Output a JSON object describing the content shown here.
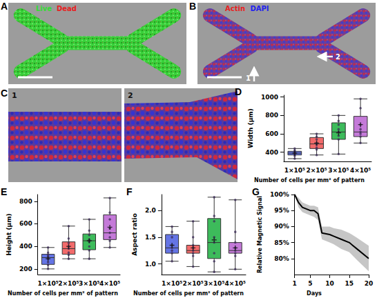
{
  "images": [
    {
      "letter": "A",
      "labels": [
        {
          "text": "Live",
          "color": "#33dd33"
        },
        {
          "text": "Dead",
          "color": "#e82020"
        }
      ]
    },
    {
      "letter": "B",
      "labels": [
        {
          "text": "Actin",
          "color": "#e82020"
        },
        {
          "text": "DAPI",
          "color": "#2222ee"
        }
      ],
      "arrows": [
        "1",
        "2"
      ]
    },
    {
      "letter": "C",
      "insets": [
        "1",
        "2"
      ]
    }
  ],
  "chart_data": [
    {
      "letter": "D",
      "type": "boxplot",
      "y_label": "Width (µm)",
      "x_label": "Number of cells per mm² of pattern",
      "categories": [
        "1×10⁵",
        "2×10⁵",
        "3×10⁵",
        "4×10⁵"
      ],
      "colors": [
        "#6474e5",
        "#f26b6b",
        "#3dbb5b",
        "#c47ad8"
      ],
      "boxes": [
        {
          "min": 330,
          "q1": 370,
          "median": 390,
          "q3": 410,
          "max": 440,
          "mean": 390,
          "points": [
            330,
            360,
            375,
            385,
            395,
            405,
            420,
            440
          ]
        },
        {
          "min": 370,
          "q1": 440,
          "median": 490,
          "q3": 560,
          "max": 600,
          "mean": 500,
          "points": [
            370,
            430,
            450,
            480,
            500,
            540,
            570,
            600
          ]
        },
        {
          "min": 380,
          "q1": 540,
          "median": 620,
          "q3": 720,
          "max": 800,
          "mean": 610,
          "points": [
            380,
            540,
            580,
            620,
            650,
            700,
            740,
            800
          ]
        },
        {
          "min": 500,
          "q1": 570,
          "median": 620,
          "q3": 790,
          "max": 980,
          "mean": 700,
          "points": [
            500,
            570,
            600,
            620,
            650,
            700,
            880,
            980
          ]
        }
      ],
      "ylim": [
        300,
        1020
      ],
      "yticks": [
        400,
        600,
        800,
        1000
      ],
      "grid": false
    },
    {
      "letter": "E",
      "type": "boxplot",
      "y_label": "Height (µm)",
      "x_label": "Number of cells per mm² of pattern",
      "categories": [
        "1×10⁵",
        "2×10⁵",
        "3×10⁵",
        "4×10⁵"
      ],
      "colors": [
        "#6474e5",
        "#f26b6b",
        "#3dbb5b",
        "#c47ad8"
      ],
      "boxes": [
        {
          "min": 200,
          "q1": 240,
          "median": 300,
          "q3": 330,
          "max": 390,
          "mean": 290,
          "points": [
            200,
            235,
            260,
            290,
            310,
            325,
            345,
            390
          ]
        },
        {
          "min": 290,
          "q1": 330,
          "median": 380,
          "q3": 440,
          "max": 580,
          "mean": 400,
          "points": [
            290,
            325,
            345,
            380,
            400,
            430,
            470,
            580
          ]
        },
        {
          "min": 290,
          "q1": 370,
          "median": 450,
          "q3": 510,
          "max": 640,
          "mean": 450,
          "points": [
            290,
            365,
            400,
            440,
            460,
            500,
            540,
            640
          ]
        },
        {
          "min": 390,
          "q1": 460,
          "median": 520,
          "q3": 680,
          "max": 830,
          "mean": 570,
          "points": [
            390,
            450,
            480,
            520,
            560,
            640,
            700,
            830
          ]
        }
      ],
      "ylim": [
        150,
        860
      ],
      "yticks": [
        200,
        400,
        600,
        800
      ],
      "grid": false
    },
    {
      "letter": "F",
      "type": "boxplot",
      "y_label": "Aspect ratio",
      "x_label": "Number of cells per mm² of pattern",
      "categories": [
        "1×10⁵",
        "2×10⁵",
        "3×10⁵",
        "4×10⁵"
      ],
      "colors": [
        "#6474e5",
        "#f26b6b",
        "#3dbb5b",
        "#c47ad8"
      ],
      "boxes": [
        {
          "min": 1.05,
          "q1": 1.2,
          "median": 1.3,
          "q3": 1.55,
          "max": 1.7,
          "mean": 1.35,
          "points": [
            1.05,
            1.2,
            1.25,
            1.3,
            1.35,
            1.5,
            1.6,
            1.7
          ]
        },
        {
          "min": 0.95,
          "q1": 1.2,
          "median": 1.25,
          "q3": 1.35,
          "max": 1.8,
          "mean": 1.3,
          "points": [
            0.95,
            1.15,
            1.2,
            1.25,
            1.3,
            1.35,
            1.5,
            1.8
          ]
        },
        {
          "min": 0.85,
          "q1": 1.1,
          "median": 1.4,
          "q3": 1.85,
          "max": 2.25,
          "mean": 1.45,
          "points": [
            0.85,
            1.05,
            1.2,
            1.4,
            1.5,
            1.8,
            1.9,
            2.25
          ]
        },
        {
          "min": 0.9,
          "q1": 1.2,
          "median": 1.25,
          "q3": 1.4,
          "max": 2.2,
          "mean": 1.3,
          "points": [
            0.9,
            1.15,
            1.2,
            1.25,
            1.3,
            1.4,
            1.6,
            2.2
          ]
        }
      ],
      "ylim": [
        0.8,
        2.3
      ],
      "yticks": [
        {
          "value": 1,
          "label": "1.0"
        },
        1.5,
        {
          "value": 2,
          "label": "2.0"
        }
      ],
      "grid": false
    },
    {
      "letter": "G",
      "type": "line",
      "y_label": "Relative Magnetic Signal",
      "x_label": "Days",
      "x": [
        1,
        2,
        3,
        5,
        6,
        7,
        8,
        10,
        11,
        13,
        15,
        17,
        20
      ],
      "values": [
        100,
        97.5,
        96,
        95,
        95,
        94,
        88,
        87.5,
        87,
        86,
        85,
        83,
        80
      ],
      "lower": [
        100,
        96,
        94.5,
        93.5,
        93,
        92,
        86,
        85,
        84.5,
        83,
        82,
        79.5,
        76
      ],
      "upper": [
        100,
        99,
        97.5,
        96.5,
        96.5,
        96,
        90,
        90,
        89.5,
        89,
        88,
        86.5,
        84
      ],
      "color": "#000000",
      "band_color": "#a0a0a0",
      "xlim": [
        1,
        20
      ],
      "xticks": [
        1,
        5,
        10,
        15,
        20
      ],
      "ylim": [
        75,
        100
      ],
      "yticks": [
        {
          "value": 80,
          "label": "80%"
        },
        {
          "value": 85,
          "label": "85%"
        },
        {
          "value": 90,
          "label": "90%"
        },
        {
          "value": 95,
          "label": "95%"
        },
        {
          "value": 100,
          "label": "100%"
        }
      ],
      "grid": false
    }
  ]
}
